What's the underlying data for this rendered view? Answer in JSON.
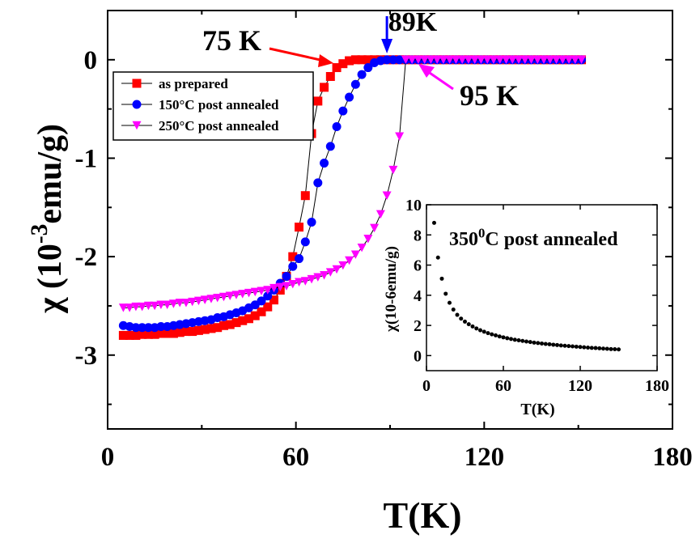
{
  "chart_data": [
    {
      "type": "scatter",
      "title": "",
      "xlabel": "T(K)",
      "ylabel": {
        "prefix": "χ (10",
        "sup": "-3",
        "suffix": "emu/g)"
      },
      "xlim": [
        0,
        180
      ],
      "ylim": [
        -3.75,
        0.5
      ],
      "xticks": [
        0,
        60,
        120,
        180
      ],
      "yticks": [
        0,
        -1,
        -2,
        -3
      ],
      "legend_position": "upper-left",
      "series": [
        {
          "name": "as prepared",
          "marker": "square",
          "color": "#ff0000",
          "x": [
            5,
            7,
            9,
            11,
            13,
            15,
            17,
            19,
            21,
            23,
            25,
            27,
            29,
            31,
            33,
            35,
            37,
            39,
            41,
            43,
            45,
            47,
            49,
            51,
            53,
            55,
            57,
            59,
            61,
            63,
            65,
            67,
            69,
            71,
            73,
            75,
            77,
            79,
            81,
            83,
            85,
            87,
            89,
            91,
            93,
            95,
            97,
            99,
            101,
            103,
            105,
            107,
            109,
            111,
            113,
            115,
            117,
            119,
            121,
            123,
            125,
            127,
            129,
            131,
            133,
            135,
            137,
            139,
            141,
            143,
            145,
            147,
            149,
            151
          ],
          "y": [
            -2.8,
            -2.8,
            -2.8,
            -2.79,
            -2.79,
            -2.79,
            -2.78,
            -2.78,
            -2.78,
            -2.77,
            -2.76,
            -2.76,
            -2.75,
            -2.74,
            -2.73,
            -2.72,
            -2.7,
            -2.69,
            -2.67,
            -2.65,
            -2.63,
            -2.6,
            -2.56,
            -2.51,
            -2.44,
            -2.34,
            -2.2,
            -2.0,
            -1.7,
            -1.38,
            -0.75,
            -0.42,
            -0.28,
            -0.17,
            -0.08,
            -0.04,
            -0.01,
            0,
            0,
            0,
            0,
            0,
            0,
            0,
            0,
            0,
            0,
            0,
            0,
            0,
            0,
            0,
            0,
            0,
            0,
            0,
            0,
            0,
            0,
            0,
            0,
            0,
            0,
            0,
            0,
            0,
            0,
            0,
            0,
            0,
            0,
            0,
            0,
            0
          ]
        },
        {
          "name": "150°C post annealed",
          "marker": "circle",
          "color": "#0000ff",
          "x": [
            5,
            7,
            9,
            11,
            13,
            15,
            17,
            19,
            21,
            23,
            25,
            27,
            29,
            31,
            33,
            35,
            37,
            39,
            41,
            43,
            45,
            47,
            49,
            51,
            53,
            55,
            57,
            59,
            61,
            63,
            65,
            67,
            69,
            71,
            73,
            75,
            77,
            79,
            81,
            83,
            85,
            87,
            89,
            91,
            93,
            95,
            97,
            99,
            101,
            103,
            105,
            107,
            109,
            111,
            113,
            115,
            117,
            119,
            121,
            123,
            125,
            127,
            129,
            131,
            133,
            135,
            137,
            139,
            141,
            143,
            145,
            147,
            149,
            151
          ],
          "y": [
            -2.7,
            -2.71,
            -2.72,
            -2.72,
            -2.72,
            -2.72,
            -2.71,
            -2.71,
            -2.7,
            -2.69,
            -2.68,
            -2.67,
            -2.66,
            -2.65,
            -2.64,
            -2.62,
            -2.61,
            -2.59,
            -2.57,
            -2.55,
            -2.52,
            -2.49,
            -2.45,
            -2.4,
            -2.34,
            -2.27,
            -2.2,
            -2.1,
            -2.02,
            -1.85,
            -1.65,
            -1.25,
            -1.05,
            -0.88,
            -0.68,
            -0.52,
            -0.38,
            -0.25,
            -0.15,
            -0.08,
            -0.03,
            -0.01,
            0,
            0,
            0,
            0,
            0,
            0,
            0,
            0,
            0,
            0,
            0,
            0,
            0,
            0,
            0,
            0,
            0,
            0,
            0,
            0,
            0,
            0,
            0,
            0,
            0,
            0,
            0,
            0,
            0,
            0,
            0,
            0
          ]
        },
        {
          "name": "250°C post annealed",
          "marker": "triangle-down",
          "color": "#ff00ff",
          "x": [
            5,
            7,
            9,
            11,
            13,
            15,
            17,
            19,
            21,
            23,
            25,
            27,
            29,
            31,
            33,
            35,
            37,
            39,
            41,
            43,
            45,
            47,
            49,
            51,
            53,
            55,
            57,
            59,
            61,
            63,
            65,
            67,
            69,
            71,
            73,
            75,
            77,
            79,
            81,
            83,
            85,
            87,
            89,
            91,
            93,
            95,
            97,
            99,
            101,
            103,
            105,
            107,
            109,
            111,
            113,
            115,
            117,
            119,
            121,
            123,
            125,
            127,
            129,
            131,
            133,
            135,
            137,
            139,
            141,
            143,
            145,
            147,
            149,
            151
          ],
          "y": [
            -2.52,
            -2.52,
            -2.51,
            -2.51,
            -2.5,
            -2.5,
            -2.49,
            -2.49,
            -2.48,
            -2.47,
            -2.47,
            -2.46,
            -2.45,
            -2.44,
            -2.43,
            -2.42,
            -2.41,
            -2.4,
            -2.39,
            -2.38,
            -2.37,
            -2.36,
            -2.35,
            -2.34,
            -2.32,
            -2.31,
            -2.3,
            -2.28,
            -2.26,
            -2.25,
            -2.23,
            -2.21,
            -2.19,
            -2.16,
            -2.13,
            -2.09,
            -2.04,
            -1.98,
            -1.91,
            -1.82,
            -1.71,
            -1.57,
            -1.38,
            -1.12,
            -0.78,
            0,
            0,
            0,
            0,
            0,
            0,
            0,
            0,
            0,
            0,
            0,
            0,
            0,
            0,
            0,
            0,
            0,
            0,
            0,
            0,
            0,
            0,
            0,
            0,
            0,
            0,
            0,
            0,
            0
          ]
        }
      ],
      "annotations": [
        {
          "text": "75 K",
          "color": "#ff0000",
          "x": 73,
          "y": -0.05
        },
        {
          "text": "89K",
          "color": "#0000ff",
          "x": 89,
          "y": 0
        },
        {
          "text": "95 K",
          "color": "#ff00ff",
          "x": 95,
          "y": 0
        }
      ]
    },
    {
      "type": "scatter",
      "title": "",
      "inset": true,
      "annotation": {
        "prefix": "350",
        "sup": "0",
        "suffix": "C post annealed"
      },
      "xlabel": "T(K)",
      "ylabel": "χ(10-6emu/g)",
      "xlim": [
        0,
        180
      ],
      "ylim": [
        -1,
        10
      ],
      "xticks": [
        0,
        60,
        120,
        180
      ],
      "yticks": [
        0,
        2,
        4,
        6,
        8,
        10
      ],
      "series": [
        {
          "color": "#000000",
          "x": [
            6,
            9,
            12,
            15,
            18,
            21,
            24,
            27,
            30,
            33,
            36,
            39,
            42,
            45,
            48,
            51,
            54,
            57,
            60,
            63,
            66,
            69,
            72,
            75,
            78,
            81,
            84,
            87,
            90,
            93,
            96,
            99,
            102,
            105,
            108,
            111,
            114,
            117,
            120,
            123,
            126,
            129,
            132,
            135,
            138,
            141,
            144,
            147,
            150
          ],
          "y": [
            8.8,
            6.5,
            5.1,
            4.1,
            3.5,
            3.05,
            2.7,
            2.45,
            2.25,
            2.08,
            1.93,
            1.8,
            1.68,
            1.58,
            1.49,
            1.41,
            1.34,
            1.27,
            1.21,
            1.15,
            1.1,
            1.05,
            1.01,
            0.97,
            0.93,
            0.9,
            0.86,
            0.83,
            0.8,
            0.77,
            0.75,
            0.72,
            0.7,
            0.67,
            0.65,
            0.63,
            0.61,
            0.59,
            0.57,
            0.55,
            0.53,
            0.51,
            0.5,
            0.48,
            0.46,
            0.45,
            0.43,
            0.42,
            0.41
          ]
        }
      ]
    }
  ]
}
